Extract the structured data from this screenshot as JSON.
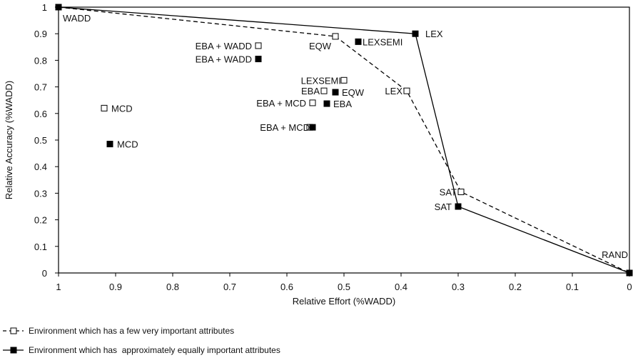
{
  "chart_data": {
    "type": "scatter",
    "xlabel": "Relative Effort (%WADD)",
    "ylabel": "Relative Accuracy (%WADD)",
    "xlim": [
      1,
      0
    ],
    "ylim": [
      0,
      1
    ],
    "x_reversed": true,
    "grid": false,
    "xticks": [
      "1",
      "0.9",
      "0.8",
      "0.7",
      "0.6",
      "0.5",
      "0.4",
      "0.3",
      "0.2",
      "0.1",
      "0"
    ],
    "yticks": [
      "0",
      "0.1",
      "0.2",
      "0.3",
      "0.4",
      "0.5",
      "0.6",
      "0.7",
      "0.8",
      "0.9",
      "1"
    ],
    "series": [
      {
        "name": "Environment which has a few very important attributes",
        "marker": "open-square",
        "points": [
          {
            "label": "WADD",
            "x": 1.0,
            "y": 1.0
          },
          {
            "label": "MCD",
            "x": 0.92,
            "y": 0.62
          },
          {
            "label": "EBA + WADD",
            "x": 0.65,
            "y": 0.855
          },
          {
            "label": "EQW",
            "x": 0.515,
            "y": 0.89
          },
          {
            "label": "LEXSEMI",
            "x": 0.5,
            "y": 0.725
          },
          {
            "label": "EBA",
            "x": 0.535,
            "y": 0.685
          },
          {
            "label": "EBA + MCD",
            "x": 0.555,
            "y": 0.64
          },
          {
            "label": "EBA + MCD",
            "x": 0.56,
            "y": 0.548
          },
          {
            "label": "LEX",
            "x": 0.39,
            "y": 0.685
          },
          {
            "label": "SAT",
            "x": 0.295,
            "y": 0.305
          },
          {
            "label": "RAND",
            "x": 0.0,
            "y": 0.0
          }
        ],
        "line_path": [
          "WADD",
          "EQW",
          "LEX",
          "SAT",
          "RAND"
        ]
      },
      {
        "name": "Environment which has  approximately equally important attributes",
        "marker": "filled-square",
        "points": [
          {
            "label": "WADD",
            "x": 1.0,
            "y": 1.0
          },
          {
            "label": "MCD",
            "x": 0.91,
            "y": 0.485
          },
          {
            "label": "EBA + WADD",
            "x": 0.65,
            "y": 0.805
          },
          {
            "label": "LEXSEMI",
            "x": 0.475,
            "y": 0.87
          },
          {
            "label": "LEX",
            "x": 0.375,
            "y": 0.9
          },
          {
            "label": "EQW",
            "x": 0.515,
            "y": 0.68
          },
          {
            "label": "EBA",
            "x": 0.53,
            "y": 0.637
          },
          {
            "label": "EBA + MCD",
            "x": 0.555,
            "y": 0.548
          },
          {
            "label": "SAT",
            "x": 0.3,
            "y": 0.25
          },
          {
            "label": "RAND",
            "x": 0.0,
            "y": 0.0
          }
        ],
        "line_path": [
          "WADD",
          "LEX",
          "SAT",
          "RAND"
        ]
      }
    ],
    "annotations": [
      {
        "text": "WADD",
        "x": 1.0,
        "y": 1.0,
        "anchor": "start",
        "dx": 6,
        "dy": 20
      },
      {
        "text": "EQW",
        "x": 0.515,
        "y": 0.89,
        "anchor": "end",
        "dx": -6,
        "dy": 18
      },
      {
        "text": "LEXSEMI",
        "x": 0.475,
        "y": 0.87,
        "anchor": "start",
        "dx": 6,
        "dy": 5
      },
      {
        "text": "LEX",
        "x": 0.375,
        "y": 0.9,
        "anchor": "start",
        "dx": 14,
        "dy": 5
      },
      {
        "text": "EBA + WADD",
        "x": 0.65,
        "y": 0.855,
        "anchor": "end",
        "dx": -9,
        "dy": 5
      },
      {
        "text": "EBA + WADD",
        "x": 0.65,
        "y": 0.805,
        "anchor": "end",
        "dx": -9,
        "dy": 5
      },
      {
        "text": "LEXSEMI",
        "x": 0.5,
        "y": 0.725,
        "anchor": "end",
        "dx": -4,
        "dy": 5
      },
      {
        "text": "EBA",
        "x": 0.535,
        "y": 0.685,
        "anchor": "end",
        "dx": -6,
        "dy": 5
      },
      {
        "text": "EQW",
        "x": 0.515,
        "y": 0.68,
        "anchor": "start",
        "dx": 9,
        "dy": 5
      },
      {
        "text": "LEX",
        "x": 0.39,
        "y": 0.685,
        "anchor": "end",
        "dx": -6,
        "dy": 5
      },
      {
        "text": "EBA + MCD",
        "x": 0.555,
        "y": 0.64,
        "anchor": "end",
        "dx": -9,
        "dy": 5
      },
      {
        "text": "EBA",
        "x": 0.53,
        "y": 0.637,
        "anchor": "start",
        "dx": 9,
        "dy": 5
      },
      {
        "text": "MCD",
        "x": 0.92,
        "y": 0.62,
        "anchor": "start",
        "dx": 10,
        "dy": 5
      },
      {
        "text": "EBA + MCD",
        "x": 0.56,
        "y": 0.548,
        "anchor": "end",
        "dx": 0,
        "dy": 5
      },
      {
        "text": "MCD",
        "x": 0.91,
        "y": 0.485,
        "anchor": "start",
        "dx": 10,
        "dy": 5
      },
      {
        "text": "SAT",
        "x": 0.295,
        "y": 0.305,
        "anchor": "end",
        "dx": -6,
        "dy": 5
      },
      {
        "text": "SAT",
        "x": 0.3,
        "y": 0.25,
        "anchor": "end",
        "dx": -9,
        "dy": 5
      },
      {
        "text": "RAND",
        "x": 0.0,
        "y": 0.0,
        "anchor": "end",
        "dx": -2,
        "dy": -21
      }
    ],
    "legend": {
      "placement": "bottom-left",
      "items": [
        {
          "text": "Environment which has a few very important attributes",
          "style": "dashed-open-square"
        },
        {
          "text": "Environment which has  approximately equally important attributes",
          "style": "solid-filled-square"
        }
      ]
    }
  }
}
